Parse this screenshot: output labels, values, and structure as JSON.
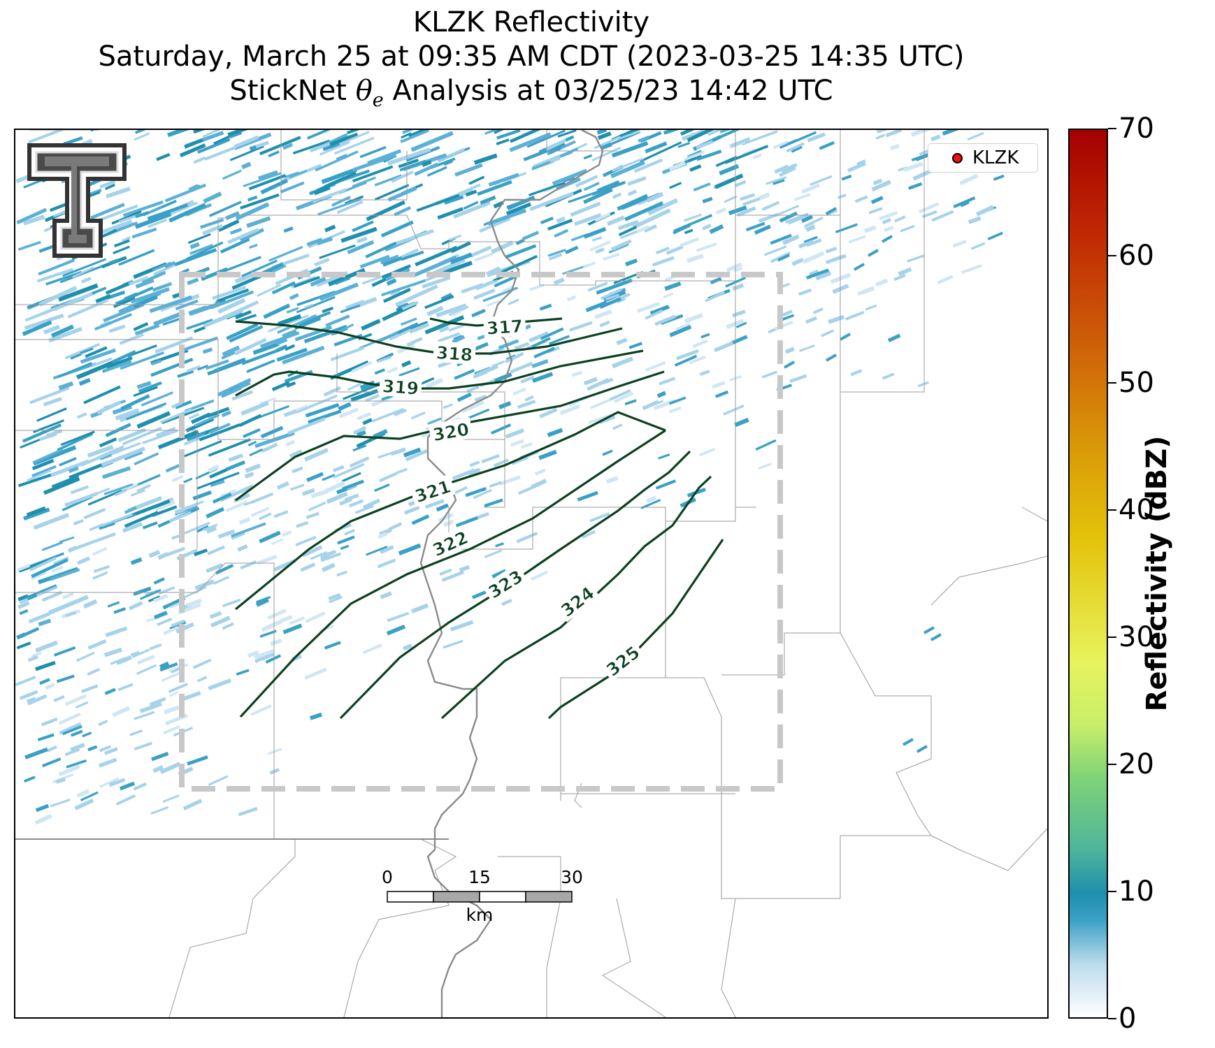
{
  "title": {
    "line1": "KLZK Reflectivity",
    "line2": "Saturday, March 25 at 09:35 AM CDT (2023-03-25 14:35 UTC)",
    "line3_prefix": "StickNet ",
    "line3_symbol": "θ",
    "line3_subscript": "e",
    "line3_suffix": " Analysis at 03/25/23 14:42 UTC"
  },
  "legend": {
    "label": "KLZK"
  },
  "logo": {
    "text": "T",
    "icon": "texas-tech-double-t-logo"
  },
  "colorbar": {
    "label": "Reflectivity (dBZ)",
    "min": 0,
    "max": 70,
    "ticks": [
      "0",
      "10",
      "20",
      "30",
      "40",
      "50",
      "60",
      "70"
    ]
  },
  "contours": {
    "color": "#0b4120",
    "labels": [
      "317",
      "318",
      "319",
      "320",
      "321",
      "322",
      "323",
      "324",
      "325"
    ]
  },
  "scalebar": {
    "ticks": [
      "0",
      "15",
      "30"
    ],
    "unit": "km"
  },
  "colors": {
    "reflectivity_light": "#a6d2ea",
    "reflectivity_mid": "#3aa0c6",
    "reflectivity_dark": "#1f8fad",
    "domain_box": "#c8c8c8",
    "county_lines": "#9a9a9a",
    "river": "#8a8a8a"
  }
}
